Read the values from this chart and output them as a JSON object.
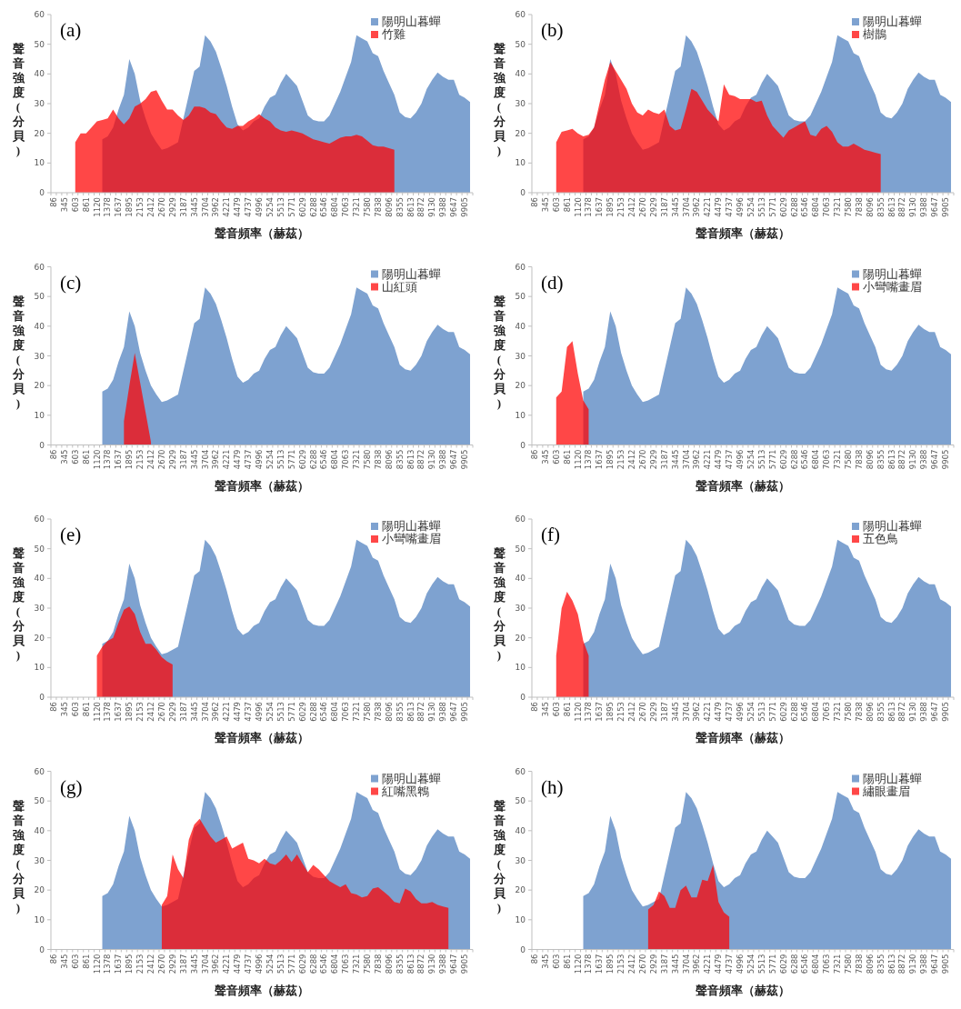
{
  "chart_data": [
    {
      "type": "area",
      "title": "(a)",
      "xlabel": "聲音頻率（赫茲）",
      "ylabel": "聲音強度(分貝)",
      "ylim": [
        0,
        60
      ],
      "yticks": [
        0,
        10,
        20,
        30,
        40,
        50,
        60
      ],
      "legend": "top right",
      "categories": [
        "86",
        null,
        "345",
        null,
        "603",
        null,
        "861",
        null,
        "1120",
        null,
        "1378",
        null,
        "1637",
        null,
        "1895",
        null,
        "2153",
        null,
        "2412",
        null,
        "2670",
        null,
        "2929",
        null,
        "3187",
        null,
        "3445",
        null,
        "3704",
        null,
        "3962",
        null,
        "4221",
        null,
        "4479",
        null,
        "4737",
        null,
        "4996",
        null,
        "5254",
        null,
        "5513",
        null,
        "5771",
        null,
        "6029",
        null,
        "6288",
        null,
        "6546",
        null,
        "6804",
        null,
        "7063",
        null,
        "7321",
        null,
        "7580",
        null,
        "7838",
        null,
        "8096",
        null,
        "8355",
        null,
        "8613",
        null,
        "8872",
        null,
        "9130",
        null,
        "9388",
        null,
        "9647",
        null,
        "9905",
        null
      ],
      "series": [
        {
          "name": "陽明山暮蟬",
          "color": "#7ea2d0",
          "values": [
            null,
            null,
            null,
            null,
            null,
            null,
            null,
            null,
            null,
            18,
            19,
            22,
            28,
            33,
            45,
            40,
            31,
            25,
            20,
            17,
            14.5,
            15,
            16,
            17,
            25,
            33,
            41,
            42.5,
            53,
            51,
            47.5,
            42,
            36,
            29,
            23,
            21,
            22,
            24,
            25,
            29,
            32,
            33,
            37,
            40,
            38,
            36,
            31,
            26,
            24.5,
            24,
            24,
            26,
            30,
            34,
            39,
            44,
            53,
            52,
            51,
            47,
            46,
            41,
            37,
            33,
            27,
            25.5,
            25,
            27,
            30,
            35,
            38,
            40.5,
            39,
            38,
            38,
            33,
            32,
            30.5
          ]
        },
        {
          "name": "竹雞",
          "color": "#ff0000",
          "values": [
            null,
            null,
            null,
            null,
            17,
            20,
            20,
            22,
            24,
            24.5,
            25,
            28,
            25,
            23,
            25,
            29,
            30,
            31.5,
            34,
            34.5,
            31,
            28,
            28,
            26,
            24.5,
            26,
            29,
            29,
            28.5,
            27,
            26.5,
            24,
            22,
            21.5,
            22.5,
            22.5,
            24,
            25,
            26.5,
            25,
            24,
            22,
            21,
            20.5,
            21,
            20.5,
            20,
            19,
            18,
            17.5,
            17,
            16.5,
            17.5,
            18.5,
            19,
            19,
            19.5,
            19,
            17.5,
            16,
            15.5,
            15.5,
            15,
            14.5,
            null,
            null,
            null,
            null,
            null,
            null,
            null,
            null,
            null,
            null,
            null,
            null,
            null,
            null
          ]
        }
      ]
    },
    {
      "type": "area",
      "title": "(b)",
      "xlabel": "聲音頻率（赫茲）",
      "ylabel": "聲音強度(分貝)",
      "ylim": [
        0,
        60
      ],
      "yticks": [
        0,
        10,
        20,
        30,
        40,
        50,
        60
      ],
      "legend": "top right",
      "categories": [
        "86",
        null,
        "345",
        null,
        "603",
        null,
        "861",
        null,
        "1120",
        null,
        "1378",
        null,
        "1637",
        null,
        "1895",
        null,
        "2153",
        null,
        "2412",
        null,
        "2670",
        null,
        "2929",
        null,
        "3187",
        null,
        "3445",
        null,
        "3704",
        null,
        "3962",
        null,
        "4221",
        null,
        "4479",
        null,
        "4737",
        null,
        "4996",
        null,
        "5254",
        null,
        "5513",
        null,
        "5771",
        null,
        "6029",
        null,
        "6288",
        null,
        "6546",
        null,
        "6804",
        null,
        "7063",
        null,
        "7321",
        null,
        "7580",
        null,
        "7838",
        null,
        "8096",
        null,
        "8355",
        null,
        "8613",
        null,
        "8872",
        null,
        "9130",
        null,
        "9388",
        null,
        "9647",
        null,
        "9905",
        null
      ],
      "series": [
        {
          "name": "陽明山暮蟬",
          "color": "#7ea2d0",
          "values": [
            null,
            null,
            null,
            null,
            null,
            null,
            null,
            null,
            null,
            18,
            19,
            22,
            28,
            33,
            45,
            40,
            31,
            25,
            20,
            17,
            14.5,
            15,
            16,
            17,
            25,
            33,
            41,
            42.5,
            53,
            51,
            47.5,
            42,
            36,
            29,
            23,
            21,
            22,
            24,
            25,
            29,
            32,
            33,
            37,
            40,
            38,
            36,
            31,
            26,
            24.5,
            24,
            24,
            26,
            30,
            34,
            39,
            44,
            53,
            52,
            51,
            47,
            46,
            41,
            37,
            33,
            27,
            25.5,
            25,
            27,
            30,
            35,
            38,
            40.5,
            39,
            38,
            38,
            33,
            32,
            30.5
          ]
        },
        {
          "name": "樹鵲",
          "color": "#ff0000",
          "values": [
            null,
            null,
            null,
            null,
            17,
            20.5,
            21,
            21.5,
            20,
            19,
            19.5,
            22,
            30,
            38,
            44,
            41,
            38,
            35,
            30,
            27,
            26,
            28,
            27,
            26.5,
            28,
            22.5,
            21,
            21.5,
            28,
            35,
            34,
            31,
            28,
            26,
            24,
            36.5,
            33,
            32.5,
            31.5,
            31.5,
            31.5,
            30.5,
            31,
            26,
            22.5,
            20.5,
            18.5,
            21,
            22,
            23,
            24,
            19.5,
            19,
            21.5,
            22.5,
            20.5,
            17,
            15.5,
            15.5,
            16.5,
            15.5,
            14.5,
            14,
            13.5,
            13,
            null,
            null,
            null,
            null,
            null,
            null,
            null,
            null,
            null,
            null,
            null,
            null,
            null
          ]
        }
      ]
    },
    {
      "type": "area",
      "title": "(c)",
      "xlabel": "聲音頻率（赫茲）",
      "ylabel": "聲音強度(分貝)",
      "ylim": [
        0,
        60
      ],
      "yticks": [
        0,
        10,
        20,
        30,
        40,
        50,
        60
      ],
      "legend": "top right",
      "categories": [
        "86",
        null,
        "345",
        null,
        "603",
        null,
        "861",
        null,
        "1120",
        null,
        "1378",
        null,
        "1637",
        null,
        "1895",
        null,
        "2153",
        null,
        "2412",
        null,
        "2670",
        null,
        "2929",
        null,
        "3187",
        null,
        "3445",
        null,
        "3704",
        null,
        "3962",
        null,
        "4221",
        null,
        "4479",
        null,
        "4737",
        null,
        "4996",
        null,
        "5254",
        null,
        "5513",
        null,
        "5771",
        null,
        "6029",
        null,
        "6288",
        null,
        "6546",
        null,
        "6804",
        null,
        "7063",
        null,
        "7321",
        null,
        "7580",
        null,
        "7838",
        null,
        "8096",
        null,
        "8355",
        null,
        "8613",
        null,
        "8872",
        null,
        "9130",
        null,
        "9388",
        null,
        "9647",
        null,
        "9905",
        null
      ],
      "series": [
        {
          "name": "陽明山暮蟬",
          "color": "#7ea2d0",
          "values": [
            null,
            null,
            null,
            null,
            null,
            null,
            null,
            null,
            null,
            18,
            19,
            22,
            28,
            33,
            45,
            40,
            31,
            25,
            20,
            17,
            14.5,
            15,
            16,
            17,
            25,
            33,
            41,
            42.5,
            53,
            51,
            47.5,
            42,
            36,
            29,
            23,
            21,
            22,
            24,
            25,
            29,
            32,
            33,
            37,
            40,
            38,
            36,
            31,
            26,
            24.5,
            24,
            24,
            26,
            30,
            34,
            39,
            44,
            53,
            52,
            51,
            47,
            46,
            41,
            37,
            33,
            27,
            25.5,
            25,
            27,
            30,
            35,
            38,
            40.5,
            39,
            38,
            38,
            33,
            32,
            30.5
          ]
        },
        {
          "name": "山紅頭",
          "color": "#ff0000",
          "values": [
            null,
            null,
            null,
            null,
            null,
            null,
            null,
            null,
            null,
            null,
            null,
            null,
            null,
            8,
            20,
            31,
            21,
            11,
            1,
            null,
            null,
            null,
            null,
            null,
            null,
            null,
            null,
            null,
            null,
            null,
            null,
            null,
            null,
            null,
            null,
            null,
            null,
            null,
            null,
            null,
            null,
            null,
            null,
            null,
            null,
            null,
            null,
            null,
            null,
            null,
            null,
            null,
            null,
            null,
            null,
            null,
            null,
            null,
            null,
            null,
            null,
            null,
            null,
            null,
            null,
            null,
            null,
            null,
            null,
            null,
            null,
            null,
            null,
            null,
            null,
            null,
            null,
            null
          ]
        }
      ]
    },
    {
      "type": "area",
      "title": "(d)",
      "xlabel": "聲音頻率（赫茲）",
      "ylabel": "聲音強度(分貝)",
      "ylim": [
        0,
        60
      ],
      "yticks": [
        0,
        10,
        20,
        30,
        40,
        50,
        60
      ],
      "legend": "top right",
      "categories": [
        "86",
        null,
        "345",
        null,
        "603",
        null,
        "861",
        null,
        "1120",
        null,
        "1378",
        null,
        "1637",
        null,
        "1895",
        null,
        "2153",
        null,
        "2412",
        null,
        "2670",
        null,
        "2929",
        null,
        "3187",
        null,
        "3445",
        null,
        "3704",
        null,
        "3962",
        null,
        "4221",
        null,
        "4479",
        null,
        "4737",
        null,
        "4996",
        null,
        "5254",
        null,
        "5513",
        null,
        "5771",
        null,
        "6029",
        null,
        "6288",
        null,
        "6546",
        null,
        "6804",
        null,
        "7063",
        null,
        "7321",
        null,
        "7580",
        null,
        "7838",
        null,
        "8096",
        null,
        "8355",
        null,
        "8613",
        null,
        "8872",
        null,
        "9130",
        null,
        "9388",
        null,
        "9647",
        null,
        "9905",
        null
      ],
      "series": [
        {
          "name": "陽明山暮蟬",
          "color": "#7ea2d0",
          "values": [
            null,
            null,
            null,
            null,
            null,
            null,
            null,
            null,
            null,
            18,
            19,
            22,
            28,
            33,
            45,
            40,
            31,
            25,
            20,
            17,
            14.5,
            15,
            16,
            17,
            25,
            33,
            41,
            42.5,
            53,
            51,
            47.5,
            42,
            36,
            29,
            23,
            21,
            22,
            24,
            25,
            29,
            32,
            33,
            37,
            40,
            38,
            36,
            31,
            26,
            24.5,
            24,
            24,
            26,
            30,
            34,
            39,
            44,
            53,
            52,
            51,
            47,
            46,
            41,
            37,
            33,
            27,
            25.5,
            25,
            27,
            30,
            35,
            38,
            40.5,
            39,
            38,
            38,
            33,
            32,
            30.5
          ]
        },
        {
          "name": "小彎嘴畫眉",
          "color": "#ff0000",
          "values": [
            null,
            null,
            null,
            null,
            16,
            18,
            33,
            35,
            24,
            15,
            12,
            null,
            null,
            null,
            null,
            null,
            null,
            null,
            null,
            null,
            null,
            null,
            null,
            null,
            null,
            null,
            null,
            null,
            null,
            null,
            null,
            null,
            null,
            null,
            null,
            null,
            null,
            null,
            null,
            null,
            null,
            null,
            null,
            null,
            null,
            null,
            null,
            null,
            null,
            null,
            null,
            null,
            null,
            null,
            null,
            null,
            null,
            null,
            null,
            null,
            null,
            null,
            null,
            null,
            null,
            null,
            null,
            null,
            null,
            null,
            null,
            null,
            null,
            null,
            null,
            null,
            null,
            null
          ]
        }
      ]
    },
    {
      "type": "area",
      "title": "(e)",
      "xlabel": "聲音頻率（赫茲）",
      "ylabel": "聲音強度(分貝)",
      "ylim": [
        0,
        60
      ],
      "yticks": [
        0,
        10,
        20,
        30,
        40,
        50,
        60
      ],
      "legend": "top right",
      "categories": [
        "86",
        null,
        "345",
        null,
        "603",
        null,
        "861",
        null,
        "1120",
        null,
        "1378",
        null,
        "1637",
        null,
        "1895",
        null,
        "2153",
        null,
        "2412",
        null,
        "2670",
        null,
        "2929",
        null,
        "3187",
        null,
        "3445",
        null,
        "3704",
        null,
        "3962",
        null,
        "4221",
        null,
        "4479",
        null,
        "4737",
        null,
        "4996",
        null,
        "5254",
        null,
        "5513",
        null,
        "5771",
        null,
        "6029",
        null,
        "6288",
        null,
        "6546",
        null,
        "6804",
        null,
        "7063",
        null,
        "7321",
        null,
        "7580",
        null,
        "7838",
        null,
        "8096",
        null,
        "8355",
        null,
        "8613",
        null,
        "8872",
        null,
        "9130",
        null,
        "9388",
        null,
        "9647",
        null,
        "9905",
        null
      ],
      "series": [
        {
          "name": "陽明山暮蟬",
          "color": "#7ea2d0",
          "values": [
            null,
            null,
            null,
            null,
            null,
            null,
            null,
            null,
            null,
            18,
            19,
            22,
            28,
            33,
            45,
            40,
            31,
            25,
            20,
            17,
            14.5,
            15,
            16,
            17,
            25,
            33,
            41,
            42.5,
            53,
            51,
            47.5,
            42,
            36,
            29,
            23,
            21,
            22,
            24,
            25,
            29,
            32,
            33,
            37,
            40,
            38,
            36,
            31,
            26,
            24.5,
            24,
            24,
            26,
            30,
            34,
            39,
            44,
            53,
            52,
            51,
            47,
            46,
            41,
            37,
            33,
            27,
            25.5,
            25,
            27,
            30,
            35,
            38,
            40.5,
            39,
            38,
            38,
            33,
            32,
            30.5
          ]
        },
        {
          "name": "小彎嘴畫眉",
          "color": "#ff0000",
          "values": [
            null,
            null,
            null,
            null,
            null,
            null,
            null,
            null,
            14,
            17,
            19,
            20,
            25,
            29.5,
            30.5,
            28,
            22,
            18,
            18,
            16,
            13.5,
            12,
            11,
            null,
            null,
            null,
            null,
            null,
            null,
            null,
            null,
            null,
            null,
            null,
            null,
            null,
            null,
            null,
            null,
            null,
            null,
            null,
            null,
            null,
            null,
            null,
            null,
            null,
            null,
            null,
            null,
            null,
            null,
            null,
            null,
            null,
            null,
            null,
            null,
            null,
            null,
            null,
            null,
            null,
            null,
            null,
            null,
            null,
            null,
            null,
            null,
            null,
            null,
            null,
            null,
            null,
            null,
            null
          ]
        }
      ]
    },
    {
      "type": "area",
      "title": "(f)",
      "xlabel": "聲音頻率（赫茲）",
      "ylabel": "聲音強度(分貝)",
      "ylim": [
        0,
        60
      ],
      "yticks": [
        0,
        10,
        20,
        30,
        40,
        50,
        60
      ],
      "legend": "top right",
      "categories": [
        "86",
        null,
        "345",
        null,
        "603",
        null,
        "861",
        null,
        "1120",
        null,
        "1378",
        null,
        "1637",
        null,
        "1895",
        null,
        "2153",
        null,
        "2412",
        null,
        "2670",
        null,
        "2929",
        null,
        "3187",
        null,
        "3445",
        null,
        "3704",
        null,
        "3962",
        null,
        "4221",
        null,
        "4479",
        null,
        "4737",
        null,
        "4996",
        null,
        "5254",
        null,
        "5513",
        null,
        "5771",
        null,
        "6029",
        null,
        "6288",
        null,
        "6546",
        null,
        "6804",
        null,
        "7063",
        null,
        "7321",
        null,
        "7580",
        null,
        "7838",
        null,
        "8096",
        null,
        "8355",
        null,
        "8613",
        null,
        "8872",
        null,
        "9130",
        null,
        "9388",
        null,
        "9647",
        null,
        "9905",
        null
      ],
      "series": [
        {
          "name": "陽明山暮蟬",
          "color": "#7ea2d0",
          "values": [
            null,
            null,
            null,
            null,
            null,
            null,
            null,
            null,
            null,
            18,
            19,
            22,
            28,
            33,
            45,
            40,
            31,
            25,
            20,
            17,
            14.5,
            15,
            16,
            17,
            25,
            33,
            41,
            42.5,
            53,
            51,
            47.5,
            42,
            36,
            29,
            23,
            21,
            22,
            24,
            25,
            29,
            32,
            33,
            37,
            40,
            38,
            36,
            31,
            26,
            24.5,
            24,
            24,
            26,
            30,
            34,
            39,
            44,
            53,
            52,
            51,
            47,
            46,
            41,
            37,
            33,
            27,
            25.5,
            25,
            27,
            30,
            35,
            38,
            40.5,
            39,
            38,
            38,
            33,
            32,
            30.5
          ]
        },
        {
          "name": "五色鳥",
          "color": "#ff0000",
          "values": [
            null,
            null,
            null,
            null,
            14,
            30,
            35.5,
            32.5,
            28,
            19,
            14,
            null,
            null,
            null,
            null,
            null,
            null,
            null,
            null,
            null,
            null,
            null,
            null,
            null,
            null,
            null,
            null,
            null,
            null,
            null,
            null,
            null,
            null,
            null,
            null,
            null,
            null,
            null,
            null,
            null,
            null,
            null,
            null,
            null,
            null,
            null,
            null,
            null,
            null,
            null,
            null,
            null,
            null,
            null,
            null,
            null,
            null,
            null,
            null,
            null,
            null,
            null,
            null,
            null,
            null,
            null,
            null,
            null,
            null,
            null,
            null,
            null,
            null,
            null,
            null,
            null,
            null,
            null
          ]
        }
      ]
    },
    {
      "type": "area",
      "title": "(g)",
      "xlabel": "聲音頻率（赫茲）",
      "ylabel": "聲音強度(分貝)",
      "ylim": [
        0,
        60
      ],
      "yticks": [
        0,
        10,
        20,
        30,
        40,
        50,
        60
      ],
      "legend": "top right",
      "categories": [
        "86",
        null,
        "345",
        null,
        "603",
        null,
        "861",
        null,
        "1120",
        null,
        "1378",
        null,
        "1637",
        null,
        "1895",
        null,
        "2153",
        null,
        "2412",
        null,
        "2670",
        null,
        "2929",
        null,
        "3187",
        null,
        "3445",
        null,
        "3704",
        null,
        "3962",
        null,
        "4221",
        null,
        "4479",
        null,
        "4737",
        null,
        "4996",
        null,
        "5254",
        null,
        "5513",
        null,
        "5771",
        null,
        "6029",
        null,
        "6288",
        null,
        "6546",
        null,
        "6804",
        null,
        "7063",
        null,
        "7321",
        null,
        "7580",
        null,
        "7838",
        null,
        "8096",
        null,
        "8355",
        null,
        "8613",
        null,
        "8872",
        null,
        "9130",
        null,
        "9388",
        null,
        "9647",
        null,
        "9905",
        null
      ],
      "series": [
        {
          "name": "陽明山暮蟬",
          "color": "#7ea2d0",
          "values": [
            null,
            null,
            null,
            null,
            null,
            null,
            null,
            null,
            null,
            18,
            19,
            22,
            28,
            33,
            45,
            40,
            31,
            25,
            20,
            17,
            14.5,
            15,
            16,
            17,
            25,
            33,
            41,
            42.5,
            53,
            51,
            47.5,
            42,
            36,
            29,
            23,
            21,
            22,
            24,
            25,
            29,
            32,
            33,
            37,
            40,
            38,
            36,
            31,
            26,
            24.5,
            24,
            24,
            26,
            30,
            34,
            39,
            44,
            53,
            52,
            51,
            47,
            46,
            41,
            37,
            33,
            27,
            25.5,
            25,
            27,
            30,
            35,
            38,
            40.5,
            39,
            38,
            38,
            33,
            32,
            30.5
          ]
        },
        {
          "name": "紅嘴黑鵯",
          "color": "#ff0000",
          "values": [
            null,
            null,
            null,
            null,
            null,
            null,
            null,
            null,
            null,
            null,
            null,
            null,
            null,
            null,
            null,
            null,
            null,
            null,
            null,
            null,
            15,
            18,
            32,
            27,
            24,
            37,
            42,
            44,
            41,
            38,
            36,
            37,
            38,
            34,
            35,
            36,
            30.5,
            30,
            29,
            30.5,
            29,
            28.5,
            30,
            32,
            29.5,
            32,
            29,
            26,
            28.5,
            27,
            25,
            23,
            22,
            21,
            22,
            19,
            18.5,
            17.5,
            18,
            20.5,
            21,
            19.5,
            18,
            16,
            15.5,
            20.5,
            19.5,
            17,
            15.5,
            15.5,
            16,
            15,
            14.5,
            14,
            null,
            null,
            null,
            null
          ]
        }
      ]
    },
    {
      "type": "area",
      "title": "(h)",
      "xlabel": "聲音頻率（赫茲）",
      "ylabel": "聲音強度(分貝)",
      "ylim": [
        0,
        60
      ],
      "yticks": [
        0,
        10,
        20,
        30,
        40,
        50,
        60
      ],
      "legend": "top right",
      "categories": [
        "86",
        null,
        "345",
        null,
        "603",
        null,
        "861",
        null,
        "1120",
        null,
        "1378",
        null,
        "1637",
        null,
        "1895",
        null,
        "2153",
        null,
        "2412",
        null,
        "2670",
        null,
        "2929",
        null,
        "3187",
        null,
        "3445",
        null,
        "3704",
        null,
        "3962",
        null,
        "4221",
        null,
        "4479",
        null,
        "4737",
        null,
        "4996",
        null,
        "5254",
        null,
        "5513",
        null,
        "5771",
        null,
        "6029",
        null,
        "6288",
        null,
        "6546",
        null,
        "6804",
        null,
        "7063",
        null,
        "7321",
        null,
        "7580",
        null,
        "7838",
        null,
        "8096",
        null,
        "8355",
        null,
        "8613",
        null,
        "8872",
        null,
        "9130",
        null,
        "9388",
        null,
        "9647",
        null,
        "9905",
        null
      ],
      "series": [
        {
          "name": "陽明山暮蟬",
          "color": "#7ea2d0",
          "values": [
            null,
            null,
            null,
            null,
            null,
            null,
            null,
            null,
            null,
            18,
            19,
            22,
            28,
            33,
            45,
            40,
            31,
            25,
            20,
            17,
            14.5,
            15,
            16,
            17,
            25,
            33,
            41,
            42.5,
            53,
            51,
            47.5,
            42,
            36,
            29,
            23,
            21,
            22,
            24,
            25,
            29,
            32,
            33,
            37,
            40,
            38,
            36,
            31,
            26,
            24.5,
            24,
            24,
            26,
            30,
            34,
            39,
            44,
            53,
            52,
            51,
            47,
            46,
            41,
            37,
            33,
            27,
            25.5,
            25,
            27,
            30,
            35,
            38,
            40.5,
            39,
            38,
            38,
            33,
            32,
            30.5
          ]
        },
        {
          "name": "繡眼畫眉",
          "color": "#ff0000",
          "values": [
            null,
            null,
            null,
            null,
            null,
            null,
            null,
            null,
            null,
            null,
            null,
            null,
            null,
            null,
            null,
            null,
            null,
            null,
            null,
            null,
            null,
            13.5,
            15,
            19.5,
            18,
            14,
            14,
            20,
            21.5,
            17.5,
            17.5,
            23.5,
            23,
            28.5,
            16,
            12.5,
            11,
            null,
            null,
            null,
            null,
            null,
            null,
            null,
            null,
            null,
            null,
            null,
            null,
            null,
            null,
            null,
            null,
            null,
            null,
            null,
            null,
            null,
            null,
            null,
            null,
            null,
            null,
            null,
            null,
            null,
            null,
            null,
            null,
            null,
            null,
            null,
            null,
            null,
            null,
            null,
            null,
            null
          ]
        }
      ]
    }
  ]
}
